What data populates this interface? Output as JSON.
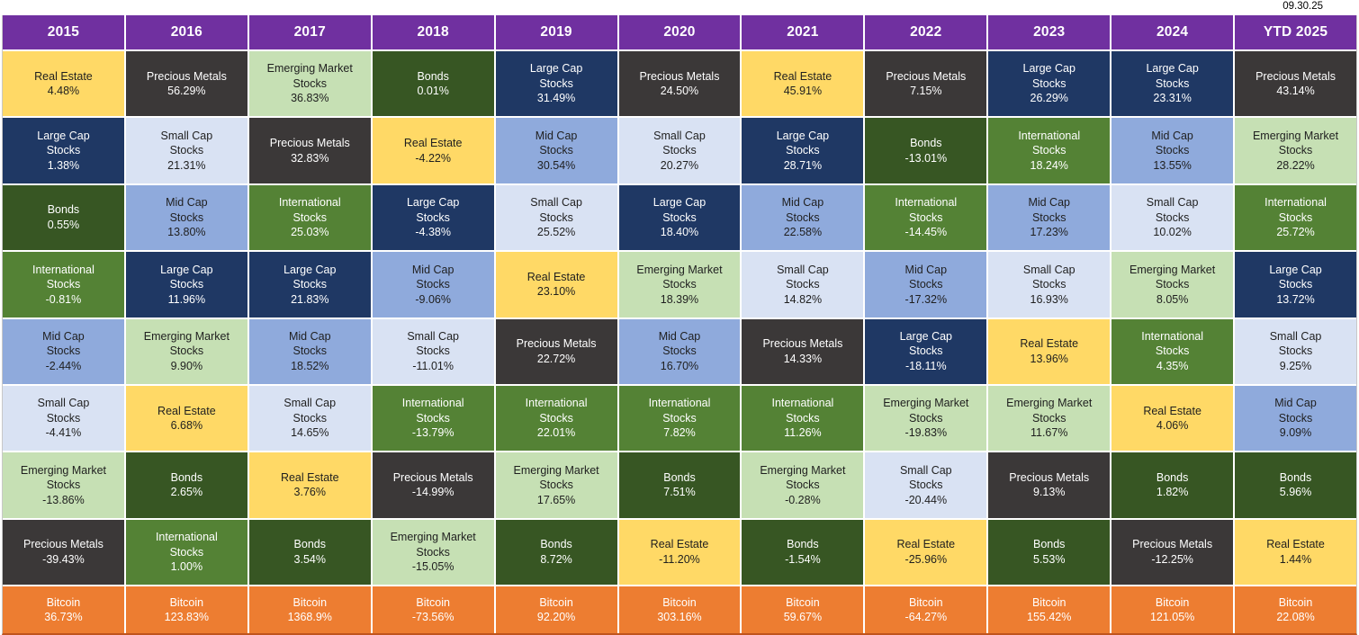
{
  "chart_data": {
    "type": "table",
    "as_of_date": "09.30.25",
    "description_of_layout": "Each column ranks asset-class total returns for that year from best (top) to worst (bottom); Bitcoin shown as separate bottom row.",
    "columns": [
      "2015",
      "2016",
      "2017",
      "2018",
      "2019",
      "2020",
      "2021",
      "2022",
      "2023",
      "2024",
      "YTD 2025"
    ],
    "asset_styles": {
      "Real Estate": {
        "bg": "#FFD966",
        "fg": "#1f1f1f",
        "display": "Real Estate"
      },
      "Precious Metals": {
        "bg": "#3B3838",
        "fg": "#ffffff",
        "display": "Precious Metals"
      },
      "Emerging Market Stocks": {
        "bg": "#C6E0B4",
        "fg": "#1f1f1f",
        "display": "Emerging Market\nStocks"
      },
      "Bonds": {
        "bg": "#375623",
        "fg": "#ffffff",
        "display": "Bonds"
      },
      "Large Cap Stocks": {
        "bg": "#1F3864",
        "fg": "#ffffff",
        "display": "Large Cap\nStocks"
      },
      "Small Cap Stocks": {
        "bg": "#D9E2F3",
        "fg": "#1f1f1f",
        "display": "Small Cap\nStocks"
      },
      "Mid Cap Stocks": {
        "bg": "#8FAADC",
        "fg": "#1f1f1f",
        "display": "Mid Cap\nStocks"
      },
      "International Stocks": {
        "bg": "#548235",
        "fg": "#ffffff",
        "display": "International\nStocks"
      },
      "Bitcoin": {
        "bg": "#ED7D31",
        "fg": "#ffffff",
        "display": "Bitcoin"
      }
    },
    "header_color": "#7030A0",
    "grid": [
      [
        {
          "asset": "Real Estate",
          "value": "4.48%"
        },
        {
          "asset": "Large Cap Stocks",
          "value": "1.38%"
        },
        {
          "asset": "Bonds",
          "value": "0.55%"
        },
        {
          "asset": "International Stocks",
          "value": "-0.81%"
        },
        {
          "asset": "Mid Cap Stocks",
          "value": "-2.44%"
        },
        {
          "asset": "Small Cap Stocks",
          "value": "-4.41%"
        },
        {
          "asset": "Emerging Market Stocks",
          "value": "-13.86%"
        },
        {
          "asset": "Precious Metals",
          "value": "-39.43%"
        },
        {
          "asset": "Bitcoin",
          "value": "36.73%"
        }
      ],
      [
        {
          "asset": "Precious Metals",
          "value": "56.29%"
        },
        {
          "asset": "Small Cap Stocks",
          "value": "21.31%"
        },
        {
          "asset": "Mid Cap Stocks",
          "value": "13.80%"
        },
        {
          "asset": "Large Cap Stocks",
          "value": "11.96%"
        },
        {
          "asset": "Emerging Market Stocks",
          "value": "9.90%"
        },
        {
          "asset": "Real Estate",
          "value": "6.68%"
        },
        {
          "asset": "Bonds",
          "value": "2.65%"
        },
        {
          "asset": "International Stocks",
          "value": "1.00%"
        },
        {
          "asset": "Bitcoin",
          "value": "123.83%"
        }
      ],
      [
        {
          "asset": "Emerging Market Stocks",
          "value": "36.83%"
        },
        {
          "asset": "Precious Metals",
          "value": "32.83%"
        },
        {
          "asset": "International Stocks",
          "value": "25.03%"
        },
        {
          "asset": "Large Cap Stocks",
          "value": "21.83%"
        },
        {
          "asset": "Mid Cap Stocks",
          "value": "18.52%"
        },
        {
          "asset": "Small Cap Stocks",
          "value": "14.65%"
        },
        {
          "asset": "Real Estate",
          "value": "3.76%"
        },
        {
          "asset": "Bonds",
          "value": "3.54%"
        },
        {
          "asset": "Bitcoin",
          "value": "1368.9%"
        }
      ],
      [
        {
          "asset": "Bonds",
          "value": "0.01%"
        },
        {
          "asset": "Real Estate",
          "value": "-4.22%"
        },
        {
          "asset": "Large Cap Stocks",
          "value": "-4.38%"
        },
        {
          "asset": "Mid Cap Stocks",
          "value": "-9.06%"
        },
        {
          "asset": "Small Cap Stocks",
          "value": "-11.01%"
        },
        {
          "asset": "International Stocks",
          "value": "-13.79%"
        },
        {
          "asset": "Precious Metals",
          "value": "-14.99%"
        },
        {
          "asset": "Emerging Market Stocks",
          "value": "-15.05%"
        },
        {
          "asset": "Bitcoin",
          "value": "-73.56%"
        }
      ],
      [
        {
          "asset": "Large Cap Stocks",
          "value": "31.49%"
        },
        {
          "asset": "Mid Cap Stocks",
          "value": "30.54%"
        },
        {
          "asset": "Small Cap Stocks",
          "value": "25.52%"
        },
        {
          "asset": "Real Estate",
          "value": "23.10%"
        },
        {
          "asset": "Precious Metals",
          "value": "22.72%"
        },
        {
          "asset": "International Stocks",
          "value": "22.01%"
        },
        {
          "asset": "Emerging Market Stocks",
          "value": "17.65%"
        },
        {
          "asset": "Bonds",
          "value": "8.72%"
        },
        {
          "asset": "Bitcoin",
          "value": "92.20%"
        }
      ],
      [
        {
          "asset": "Precious Metals",
          "value": "24.50%"
        },
        {
          "asset": "Small Cap Stocks",
          "value": "20.27%"
        },
        {
          "asset": "Large Cap Stocks",
          "value": "18.40%"
        },
        {
          "asset": "Emerging Market Stocks",
          "value": "18.39%"
        },
        {
          "asset": "Mid Cap Stocks",
          "value": "16.70%"
        },
        {
          "asset": "International Stocks",
          "value": "7.82%"
        },
        {
          "asset": "Bonds",
          "value": "7.51%"
        },
        {
          "asset": "Real Estate",
          "value": "-11.20%"
        },
        {
          "asset": "Bitcoin",
          "value": "303.16%"
        }
      ],
      [
        {
          "asset": "Real Estate",
          "value": "45.91%"
        },
        {
          "asset": "Large Cap Stocks",
          "value": "28.71%"
        },
        {
          "asset": "Mid Cap Stocks",
          "value": "22.58%"
        },
        {
          "asset": "Small Cap Stocks",
          "value": "14.82%"
        },
        {
          "asset": "Precious Metals",
          "value": "14.33%"
        },
        {
          "asset": "International Stocks",
          "value": "11.26%"
        },
        {
          "asset": "Emerging Market Stocks",
          "value": "-0.28%"
        },
        {
          "asset": "Bonds",
          "value": "-1.54%"
        },
        {
          "asset": "Bitcoin",
          "value": "59.67%"
        }
      ],
      [
        {
          "asset": "Precious Metals",
          "value": "7.15%"
        },
        {
          "asset": "Bonds",
          "value": "-13.01%"
        },
        {
          "asset": "International Stocks",
          "value": "-14.45%"
        },
        {
          "asset": "Mid Cap Stocks",
          "value": "-17.32%"
        },
        {
          "asset": "Large Cap Stocks",
          "value": "-18.11%"
        },
        {
          "asset": "Emerging Market Stocks",
          "value": "-19.83%"
        },
        {
          "asset": "Small Cap Stocks",
          "value": "-20.44%"
        },
        {
          "asset": "Real Estate",
          "value": "-25.96%"
        },
        {
          "asset": "Bitcoin",
          "value": "-64.27%"
        }
      ],
      [
        {
          "asset": "Large Cap Stocks",
          "value": "26.29%"
        },
        {
          "asset": "International Stocks",
          "value": "18.24%"
        },
        {
          "asset": "Mid Cap Stocks",
          "value": "17.23%"
        },
        {
          "asset": "Small Cap Stocks",
          "value": "16.93%"
        },
        {
          "asset": "Real Estate",
          "value": "13.96%"
        },
        {
          "asset": "Emerging Market Stocks",
          "value": "11.67%"
        },
        {
          "asset": "Precious Metals",
          "value": "9.13%"
        },
        {
          "asset": "Bonds",
          "value": "5.53%"
        },
        {
          "asset": "Bitcoin",
          "value": "155.42%"
        }
      ],
      [
        {
          "asset": "Large Cap Stocks",
          "value": "23.31%"
        },
        {
          "asset": "Mid Cap Stocks",
          "value": "13.55%"
        },
        {
          "asset": "Small Cap Stocks",
          "value": "10.02%"
        },
        {
          "asset": "Emerging Market Stocks",
          "value": "8.05%"
        },
        {
          "asset": "International Stocks",
          "value": "4.35%"
        },
        {
          "asset": "Real Estate",
          "value": "4.06%"
        },
        {
          "asset": "Bonds",
          "value": "1.82%"
        },
        {
          "asset": "Precious Metals",
          "value": "-12.25%"
        },
        {
          "asset": "Bitcoin",
          "value": "121.05%"
        }
      ],
      [
        {
          "asset": "Precious Metals",
          "value": "43.14%"
        },
        {
          "asset": "Emerging Market Stocks",
          "value": "28.22%"
        },
        {
          "asset": "International Stocks",
          "value": "25.72%"
        },
        {
          "asset": "Large Cap Stocks",
          "value": "13.72%"
        },
        {
          "asset": "Small Cap Stocks",
          "value": "9.25%"
        },
        {
          "asset": "Mid Cap Stocks",
          "value": "9.09%"
        },
        {
          "asset": "Bonds",
          "value": "5.96%"
        },
        {
          "asset": "Real Estate",
          "value": "1.44%"
        },
        {
          "asset": "Bitcoin",
          "value": "22.08%"
        }
      ]
    ]
  }
}
